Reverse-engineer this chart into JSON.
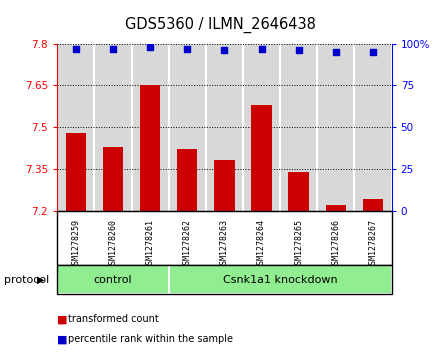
{
  "title": "GDS5360 / ILMN_2646438",
  "samples": [
    "GSM1278259",
    "GSM1278260",
    "GSM1278261",
    "GSM1278262",
    "GSM1278263",
    "GSM1278264",
    "GSM1278265",
    "GSM1278266",
    "GSM1278267"
  ],
  "bar_values": [
    7.48,
    7.43,
    7.65,
    7.42,
    7.38,
    7.58,
    7.34,
    7.22,
    7.24
  ],
  "percentile_values": [
    97,
    97,
    98,
    97,
    96,
    97,
    96,
    95,
    95
  ],
  "ylim_left": [
    7.2,
    7.8
  ],
  "ylim_right": [
    0,
    100
  ],
  "yticks_left": [
    7.2,
    7.35,
    7.5,
    7.65,
    7.8
  ],
  "yticks_right": [
    0,
    25,
    50,
    75,
    100
  ],
  "bar_color": "#cc0000",
  "dot_color": "#0000cc",
  "bar_width": 0.55,
  "plot_bg_color": "#d8d8d8",
  "ctrl_count": 3,
  "kd_count": 6,
  "control_label": "control",
  "knockdown_label": "Csnk1a1 knockdown",
  "protocol_label": "protocol",
  "legend_bar_label": "transformed count",
  "legend_dot_label": "percentile rank within the sample",
  "group_color": "#90ee90",
  "title_fontsize": 10.5,
  "tick_fontsize": 7.5,
  "axis_label_fontsize": 8
}
